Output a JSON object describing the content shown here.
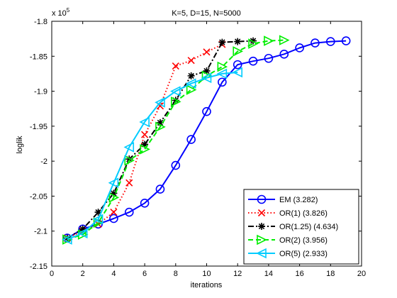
{
  "chart_data": {
    "type": "line",
    "title": "K=5, D=15, N=5000",
    "xlabel": "iterations",
    "ylabel": "loglik",
    "y_exponent_label": "x 10",
    "y_exponent_power": "5",
    "xlim": [
      0,
      20
    ],
    "ylim": [
      -2.15,
      -1.8
    ],
    "xticks": [
      0,
      2,
      4,
      6,
      8,
      10,
      12,
      14,
      16,
      18,
      20
    ],
    "yticks": [
      -2.15,
      -2.1,
      -2.05,
      -2.0,
      -1.95,
      -1.9,
      -1.85,
      -1.8
    ],
    "ytick_labels": [
      "-2.15",
      "-2.1",
      "-2.05",
      "-2",
      "-1.95",
      "-1.9",
      "-1.85",
      "-1.8"
    ],
    "grid": false,
    "legend_position": "bottom-right",
    "series": [
      {
        "name": "EM (3.282)",
        "color": "#0000ff",
        "line_style": "solid",
        "marker": "circle",
        "x": [
          1,
          2,
          3,
          4,
          5,
          6,
          7,
          8,
          9,
          10,
          11,
          12,
          13,
          14,
          15,
          16,
          17,
          18,
          19
        ],
        "y": [
          -2.11,
          -2.097,
          -2.09,
          -2.082,
          -2.073,
          -2.06,
          -2.04,
          -2.006,
          -1.969,
          -1.929,
          -1.887,
          -1.862,
          -1.857,
          -1.853,
          -1.847,
          -1.838,
          -1.831,
          -1.829,
          -1.828
        ]
      },
      {
        "name": "OR(1) (3.826)",
        "color": "#ff0000",
        "line_style": "dotted",
        "marker": "x",
        "x": [
          1,
          2,
          3,
          4,
          5,
          6,
          7,
          8,
          9,
          10,
          11
        ],
        "y": [
          -2.11,
          -2.1,
          -2.09,
          -2.073,
          -2.031,
          -1.962,
          -1.921,
          -1.864,
          -1.856,
          -1.844,
          -1.833
        ]
      },
      {
        "name": "OR(1.25) (4.634)",
        "color": "#000000",
        "line_style": "dashdot",
        "marker": "star",
        "x": [
          1,
          2,
          3,
          4,
          5,
          6,
          7,
          8,
          9,
          10,
          11,
          12,
          13
        ],
        "y": [
          -2.11,
          -2.097,
          -2.073,
          -2.046,
          -1.997,
          -1.976,
          -1.945,
          -1.913,
          -1.878,
          -1.871,
          -1.83,
          -1.829,
          -1.828
        ]
      },
      {
        "name": "OR(2) (3.956)",
        "color": "#00ee00",
        "line_style": "dashed",
        "marker": "triangle-right",
        "x": [
          1,
          2,
          3,
          4,
          5,
          6,
          7,
          8,
          9,
          10,
          11,
          12,
          13,
          14,
          15
        ],
        "y": [
          -2.112,
          -2.105,
          -2.088,
          -2.052,
          -1.999,
          -1.983,
          -1.951,
          -1.915,
          -1.898,
          -1.878,
          -1.865,
          -1.843,
          -1.832,
          -1.828,
          -1.827
        ]
      },
      {
        "name": "OR(5) (2.933)",
        "color": "#00ccff",
        "line_style": "solid",
        "marker": "triangle-left",
        "x": [
          1,
          2,
          3,
          4,
          5,
          6,
          7,
          8,
          9,
          10,
          11,
          12
        ],
        "y": [
          -2.112,
          -2.103,
          -2.083,
          -2.031,
          -1.98,
          -1.944,
          -1.916,
          -1.9,
          -1.889,
          -1.881,
          -1.875,
          -1.873
        ]
      }
    ]
  }
}
